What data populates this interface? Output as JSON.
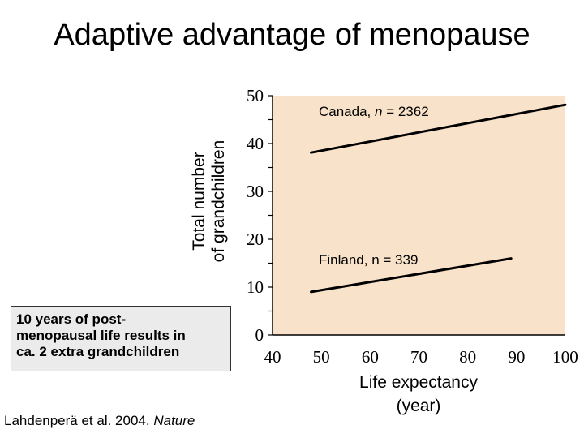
{
  "chart_data": {
    "type": "line",
    "title": "Adaptive advantage of menopause",
    "ylabel_lines": [
      "Total number",
      "of grandchildren"
    ],
    "xlabel_lines": [
      "Life expectancy",
      "(year)"
    ],
    "xlim": [
      40,
      100
    ],
    "ylim": [
      0,
      50
    ],
    "x_ticks": [
      40,
      50,
      60,
      70,
      80,
      90,
      100
    ],
    "y_ticks": [
      0,
      10,
      20,
      30,
      40,
      50
    ],
    "series": [
      {
        "name": "Canada",
        "label_prefix": "Canada, ",
        "label_n": "n",
        "label_suffix": " = 2362",
        "x": [
          47.9,
          100
        ],
        "y": [
          38.1,
          48.1
        ]
      },
      {
        "name": "Finland",
        "label_text": "Finland, n = 339",
        "x": [
          47.9,
          88.9
        ],
        "y": [
          9.0,
          16.0
        ]
      }
    ],
    "colors": {
      "plot_background": "#f8e2c9",
      "line": "#000000"
    }
  },
  "callout": {
    "text_lines": [
      "10 years of post-",
      "menopausal life results in",
      "ca. 2 extra grandchildren"
    ]
  },
  "citation": {
    "text": "Lahdenperä et al. 2004.",
    "journal": "Nature"
  }
}
